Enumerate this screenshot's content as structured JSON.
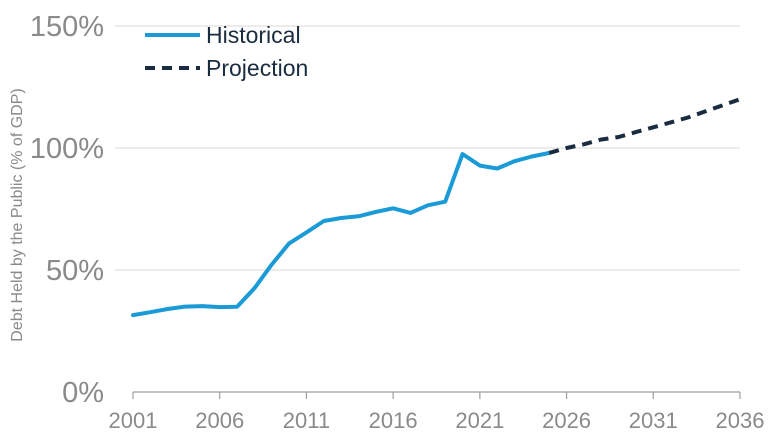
{
  "chart_data": {
    "type": "line",
    "ylabel": "Debt Held by the Public (% of GDP)",
    "xlabel": "",
    "xlim": [
      2001,
      2036
    ],
    "ylim": [
      0,
      150
    ],
    "y_ticks": [
      "0%",
      "50%",
      "100%",
      "150%"
    ],
    "x_ticks": [
      "2001",
      "2006",
      "2011",
      "2016",
      "2021",
      "2026",
      "2031",
      "2036"
    ],
    "grid": "horizontal",
    "legend_position": "top-left",
    "series": [
      {
        "name": "Historical",
        "style": "solid",
        "color": "#1a9ad6",
        "x": [
          2001,
          2002,
          2003,
          2004,
          2005,
          2006,
          2007,
          2008,
          2009,
          2010,
          2011,
          2012,
          2013,
          2014,
          2015,
          2016,
          2017,
          2018,
          2019,
          2020,
          2021,
          2022,
          2023,
          2024,
          2025
        ],
        "values": [
          31.5,
          32.7,
          34.0,
          35.0,
          35.2,
          34.8,
          34.9,
          42.5,
          52.2,
          60.9,
          65.4,
          70.1,
          71.3,
          72.0,
          73.8,
          75.3,
          73.4,
          76.5,
          78.0,
          97.5,
          92.8,
          91.6,
          94.6,
          96.5,
          98.0
        ]
      },
      {
        "name": "Projection",
        "style": "dashed",
        "color": "#1a2c3f",
        "x": [
          2025,
          2026,
          2027,
          2028,
          2029,
          2030,
          2031,
          2032,
          2033,
          2034,
          2035,
          2036
        ],
        "values": [
          98.0,
          100.0,
          101.5,
          103.5,
          104.5,
          106.5,
          108.5,
          110.5,
          112.5,
          115.0,
          117.5,
          120.0
        ]
      }
    ]
  }
}
